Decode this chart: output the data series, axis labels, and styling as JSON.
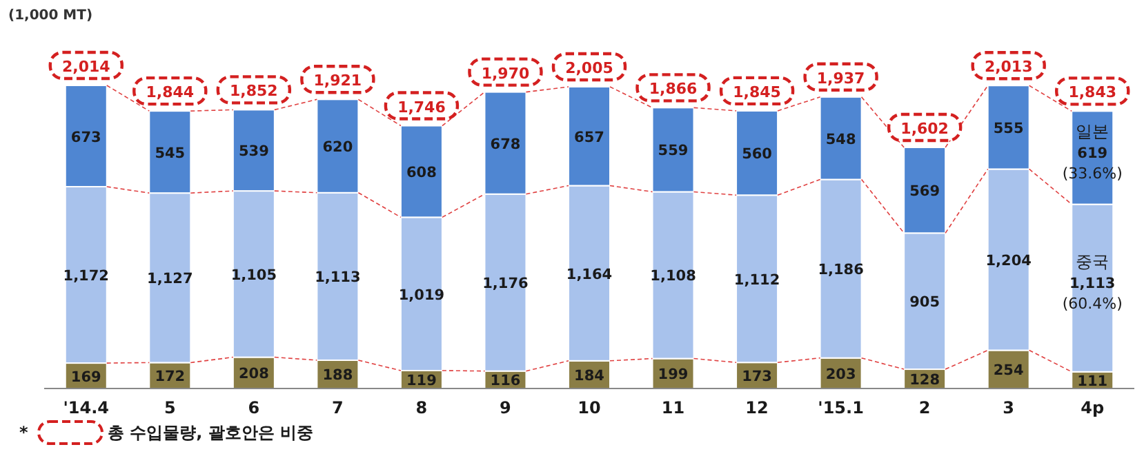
{
  "chart_data": {
    "type": "bar",
    "stacked": true,
    "ylabel": "(1,000 MT)",
    "categories": [
      "'14.4",
      "5",
      "6",
      "7",
      "8",
      "9",
      "10",
      "11",
      "12",
      "'15.1",
      "2",
      "3",
      "4p"
    ],
    "series": [
      {
        "color": "#8a7d45",
        "values": [
          169,
          172,
          208,
          188,
          119,
          116,
          184,
          199,
          173,
          203,
          128,
          254,
          111
        ],
        "value_labels": [
          "169",
          "172",
          "208",
          "188",
          "119",
          "116",
          "184",
          "199",
          "173",
          "203",
          "128",
          "254",
          "111"
        ]
      },
      {
        "name": "중국",
        "color": "#a8c2ec",
        "values": [
          1172,
          1127,
          1105,
          1113,
          1019,
          1176,
          1164,
          1108,
          1112,
          1186,
          905,
          1204,
          1113
        ],
        "value_labels": [
          "1,172",
          "1,127",
          "1,105",
          "1,113",
          "1,019",
          "1,176",
          "1,164",
          "1,108",
          "1,112",
          "1,186",
          "905",
          "1,204",
          "1,113"
        ]
      },
      {
        "name": "일본",
        "color": "#4f86d2",
        "values": [
          673,
          545,
          539,
          620,
          608,
          678,
          657,
          559,
          560,
          548,
          569,
          555,
          619
        ],
        "value_labels": [
          "673",
          "545",
          "539",
          "620",
          "608",
          "678",
          "657",
          "559",
          "560",
          "548",
          "569",
          "555",
          "619"
        ]
      }
    ],
    "totals": [
      "2,014",
      "1,844",
      "1,852",
      "1,921",
      "1,746",
      "1,970",
      "2,005",
      "1,866",
      "1,845",
      "1,937",
      "1,602",
      "2,013",
      "1,843"
    ],
    "annotations": [
      "(33.6%)",
      "(60.4%)",
      "* 총 수입물량, 괄호안은 비중"
    ]
  }
}
